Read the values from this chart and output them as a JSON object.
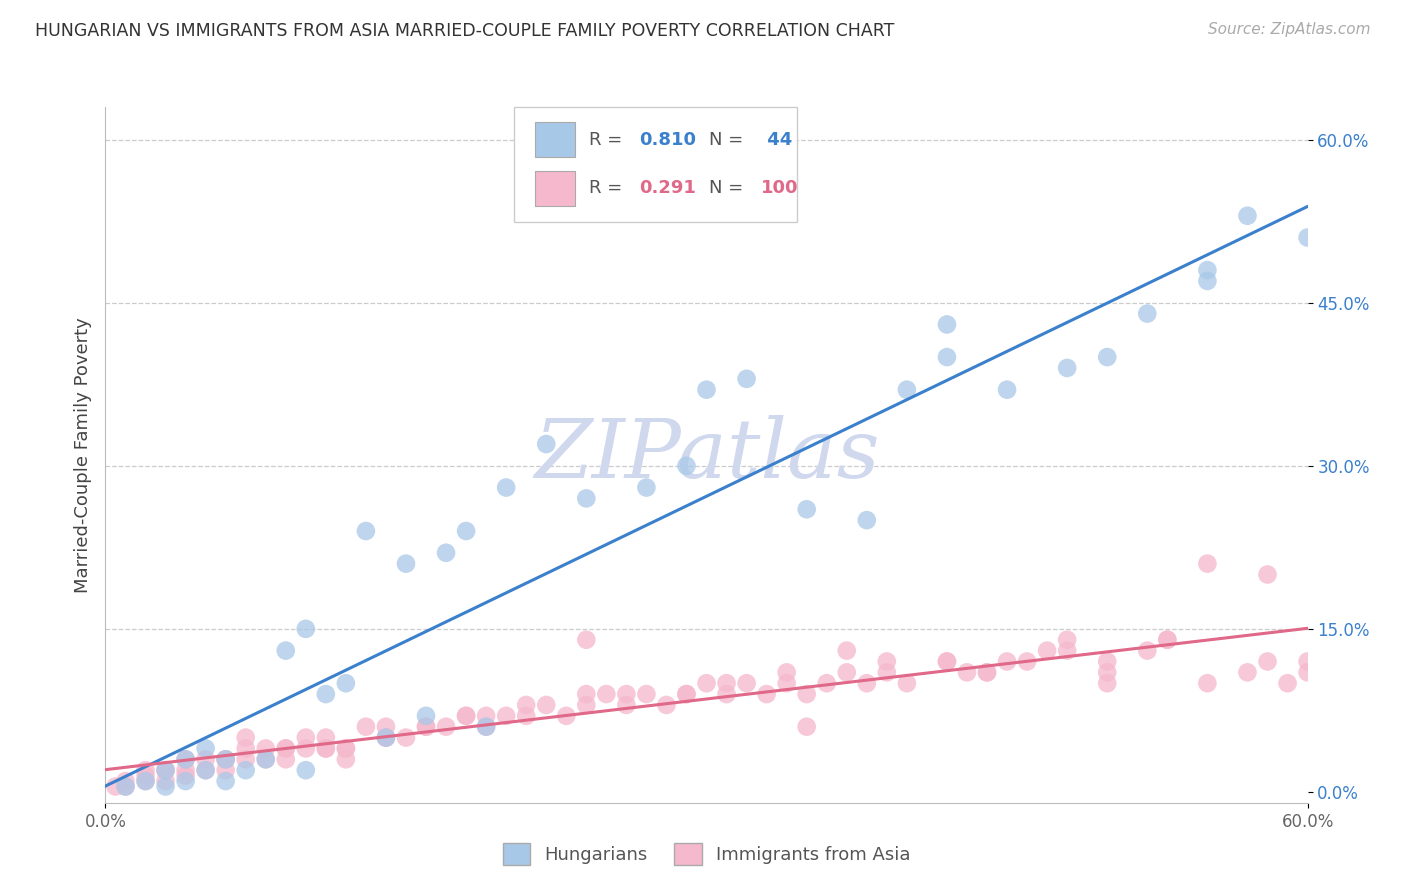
{
  "title": "HUNGARIAN VS IMMIGRANTS FROM ASIA MARRIED-COUPLE FAMILY POVERTY CORRELATION CHART",
  "source": "Source: ZipAtlas.com",
  "ylabel": "Married-Couple Family Poverty",
  "y_ticks": [
    0.0,
    0.15,
    0.3,
    0.45,
    0.6
  ],
  "y_tick_labels": [
    "0.0%",
    "15.0%",
    "30.0%",
    "45.0%",
    "60.0%"
  ],
  "x_tick_labels": [
    "0.0%",
    "60.0%"
  ],
  "xlim": [
    0.0,
    0.6
  ],
  "ylim": [
    -0.01,
    0.63
  ],
  "legend_labels": [
    "Hungarians",
    "Immigrants from Asia"
  ],
  "blue_R_str": "0.810",
  "blue_N_str": "44",
  "pink_R_str": "0.291",
  "pink_N_str": "100",
  "blue_scatter_color": "#a8c8e8",
  "pink_scatter_color": "#f5b8cc",
  "blue_line_color": "#3a80cc",
  "pink_line_color": "#e06888",
  "watermark_color": "#d0d8ee",
  "grid_color": "#cccccc",
  "title_color": "#333333",
  "source_color": "#aaaaaa",
  "blue_x": [
    0.01,
    0.02,
    0.03,
    0.03,
    0.04,
    0.04,
    0.05,
    0.05,
    0.06,
    0.06,
    0.07,
    0.08,
    0.09,
    0.1,
    0.1,
    0.11,
    0.12,
    0.13,
    0.14,
    0.15,
    0.16,
    0.17,
    0.18,
    0.19,
    0.2,
    0.22,
    0.24,
    0.27,
    0.29,
    0.32,
    0.35,
    0.38,
    0.4,
    0.42,
    0.45,
    0.48,
    0.5,
    0.52,
    0.55,
    0.57,
    0.6,
    0.3,
    0.42,
    0.55
  ],
  "blue_y": [
    0.005,
    0.01,
    0.02,
    0.005,
    0.01,
    0.03,
    0.02,
    0.04,
    0.01,
    0.03,
    0.02,
    0.03,
    0.13,
    0.02,
    0.15,
    0.09,
    0.1,
    0.24,
    0.05,
    0.21,
    0.07,
    0.22,
    0.24,
    0.06,
    0.28,
    0.32,
    0.27,
    0.28,
    0.3,
    0.38,
    0.26,
    0.25,
    0.37,
    0.4,
    0.37,
    0.39,
    0.4,
    0.44,
    0.47,
    0.53,
    0.51,
    0.37,
    0.43,
    0.48
  ],
  "pink_x": [
    0.005,
    0.01,
    0.01,
    0.02,
    0.02,
    0.03,
    0.03,
    0.04,
    0.04,
    0.05,
    0.05,
    0.06,
    0.06,
    0.07,
    0.07,
    0.08,
    0.08,
    0.09,
    0.09,
    0.1,
    0.1,
    0.11,
    0.11,
    0.12,
    0.12,
    0.13,
    0.14,
    0.14,
    0.15,
    0.16,
    0.17,
    0.18,
    0.19,
    0.2,
    0.21,
    0.22,
    0.23,
    0.24,
    0.25,
    0.26,
    0.27,
    0.28,
    0.29,
    0.3,
    0.31,
    0.32,
    0.33,
    0.34,
    0.35,
    0.36,
    0.37,
    0.38,
    0.39,
    0.4,
    0.42,
    0.43,
    0.44,
    0.45,
    0.46,
    0.47,
    0.48,
    0.5,
    0.52,
    0.53,
    0.55,
    0.57,
    0.58,
    0.59,
    0.6,
    0.03,
    0.07,
    0.11,
    0.16,
    0.21,
    0.26,
    0.31,
    0.37,
    0.42,
    0.48,
    0.53,
    0.58,
    0.04,
    0.09,
    0.14,
    0.19,
    0.24,
    0.29,
    0.34,
    0.39,
    0.44,
    0.5,
    0.55,
    0.6,
    0.02,
    0.06,
    0.12,
    0.18,
    0.24,
    0.35,
    0.5
  ],
  "pink_y": [
    0.005,
    0.01,
    0.005,
    0.015,
    0.02,
    0.01,
    0.02,
    0.015,
    0.02,
    0.02,
    0.03,
    0.02,
    0.03,
    0.03,
    0.04,
    0.03,
    0.04,
    0.04,
    0.03,
    0.04,
    0.05,
    0.04,
    0.05,
    0.03,
    0.04,
    0.06,
    0.05,
    0.06,
    0.05,
    0.06,
    0.06,
    0.07,
    0.06,
    0.07,
    0.07,
    0.08,
    0.07,
    0.08,
    0.09,
    0.08,
    0.09,
    0.08,
    0.09,
    0.1,
    0.09,
    0.1,
    0.09,
    0.1,
    0.09,
    0.1,
    0.11,
    0.1,
    0.11,
    0.1,
    0.12,
    0.11,
    0.11,
    0.12,
    0.12,
    0.13,
    0.13,
    0.12,
    0.13,
    0.14,
    0.21,
    0.11,
    0.2,
    0.1,
    0.11,
    0.02,
    0.05,
    0.04,
    0.06,
    0.08,
    0.09,
    0.1,
    0.13,
    0.12,
    0.14,
    0.14,
    0.12,
    0.03,
    0.04,
    0.05,
    0.07,
    0.14,
    0.09,
    0.11,
    0.12,
    0.11,
    0.11,
    0.1,
    0.12,
    0.01,
    0.03,
    0.04,
    0.07,
    0.09,
    0.06,
    0.1
  ]
}
